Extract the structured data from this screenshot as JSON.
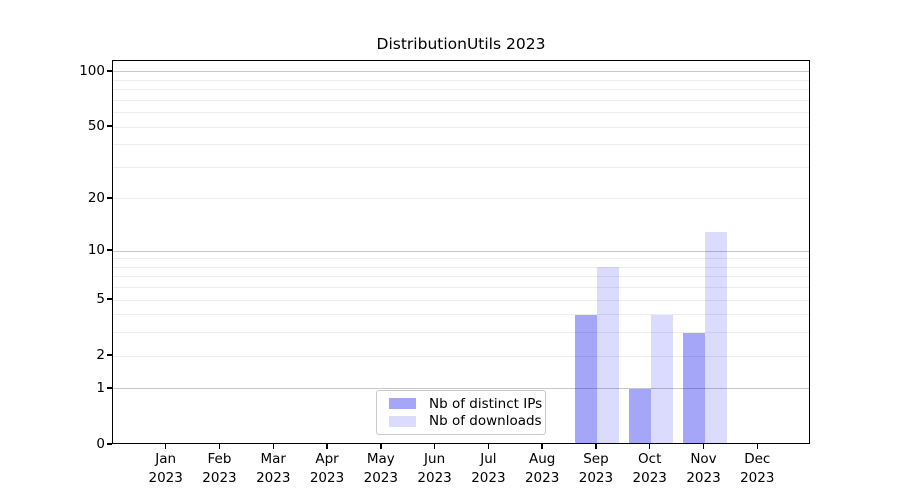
{
  "chart_data": {
    "type": "bar",
    "title": "DistributionUtils 2023",
    "categories": [
      "Jan",
      "Feb",
      "Mar",
      "Apr",
      "May",
      "Jun",
      "Jul",
      "Aug",
      "Sep",
      "Oct",
      "Nov",
      "Dec"
    ],
    "category_sublabel": "2023",
    "series": [
      {
        "name": "Nb of distinct IPs",
        "color": "rgba(0,0,238,0.35)",
        "approx_flat_hex": "#aaaaf8",
        "values": [
          0,
          0,
          0,
          0,
          0,
          0,
          0,
          0,
          4,
          1,
          3,
          0
        ]
      },
      {
        "name": "Nb of downloads",
        "color": "rgba(0,0,238,0.14)",
        "approx_flat_hex": "#dcdcf8",
        "values": [
          0,
          0,
          0,
          0,
          0,
          0,
          0,
          0,
          8,
          4,
          13,
          0
        ]
      }
    ],
    "xlabel": "",
    "ylabel": "",
    "yscale": "log1p",
    "ylim": [
      0,
      115
    ],
    "ytick_labels": [
      0,
      1,
      2,
      5,
      10,
      20,
      50,
      100
    ],
    "major_gridlines": [
      1,
      10,
      100
    ],
    "minor_gridlines": [
      2,
      3,
      4,
      5,
      6,
      7,
      8,
      9,
      20,
      30,
      40,
      50,
      60,
      70,
      80,
      90
    ],
    "grid": true,
    "legend": {
      "position": "lower center",
      "entries": [
        "Nb of distinct IPs",
        "Nb of downloads"
      ]
    },
    "style": {
      "major_grid_color": "#c8c8c8",
      "minor_grid_color": "#ededed",
      "axis_color": "#000000",
      "text_color": "#000000",
      "background": "#ffffff"
    }
  }
}
